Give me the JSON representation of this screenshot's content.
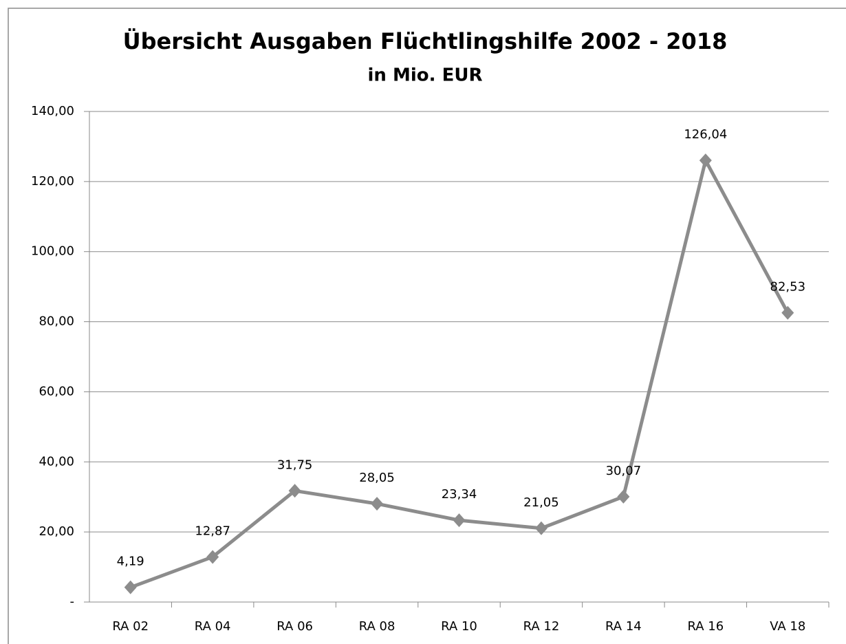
{
  "chart_data": {
    "type": "line",
    "title": "Übersicht  Ausgaben Flüchtlingshilfe  2002 - 2018",
    "subtitle": "in Mio. EUR",
    "categories": [
      "RA 02",
      "RA 04",
      "RA 06",
      "RA 08",
      "RA 10",
      "RA 12",
      "RA 14",
      "RA 16",
      "VA 18"
    ],
    "series": [
      {
        "color": "#8c8c8c",
        "values": [
          4.19,
          12.87,
          31.75,
          28.05,
          23.34,
          21.05,
          30.07,
          126.04,
          82.53
        ],
        "value_labels": [
          "4,19",
          "12,87",
          "31,75",
          "28,05",
          "23,34",
          "21,05",
          "30,07",
          "126,04",
          "82,53"
        ]
      }
    ],
    "ylim": [
      0,
      140
    ],
    "yticks": [
      {
        "value": 0,
        "label": "-"
      },
      {
        "value": 20,
        "label": "20,00"
      },
      {
        "value": 40,
        "label": "40,00"
      },
      {
        "value": 60,
        "label": "60,00"
      },
      {
        "value": 80,
        "label": "80,00"
      },
      {
        "value": 100,
        "label": "100,00"
      },
      {
        "value": 120,
        "label": "120,00"
      },
      {
        "value": 140,
        "label": "140,00"
      }
    ],
    "grid": true
  }
}
